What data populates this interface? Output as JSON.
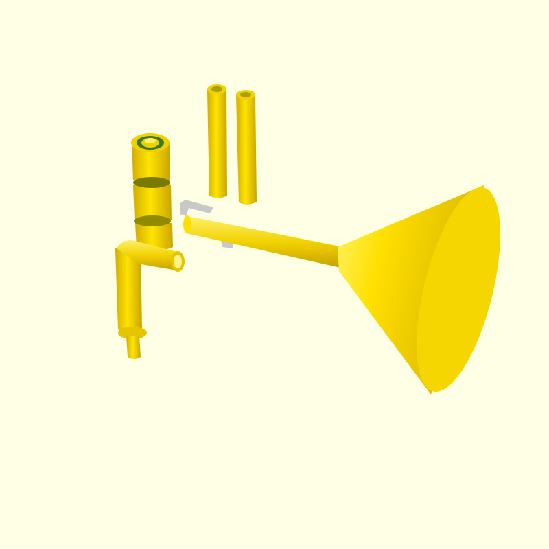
{
  "viewport": {
    "background_color": "#ffffe5",
    "part_color": "#f5d800",
    "part_shadow_color": "#c9a800",
    "part_highlight_color": "#fff27a",
    "clip_color": "#c8c8c8"
  },
  "parts": [
    {
      "name": "horn-cone"
    },
    {
      "name": "horn-tube"
    },
    {
      "name": "clip-bracket"
    },
    {
      "name": "straight-tube-left"
    },
    {
      "name": "straight-tube-right"
    },
    {
      "name": "stacked-cylinder-assembly"
    },
    {
      "name": "bent-elbow-tube"
    }
  ]
}
